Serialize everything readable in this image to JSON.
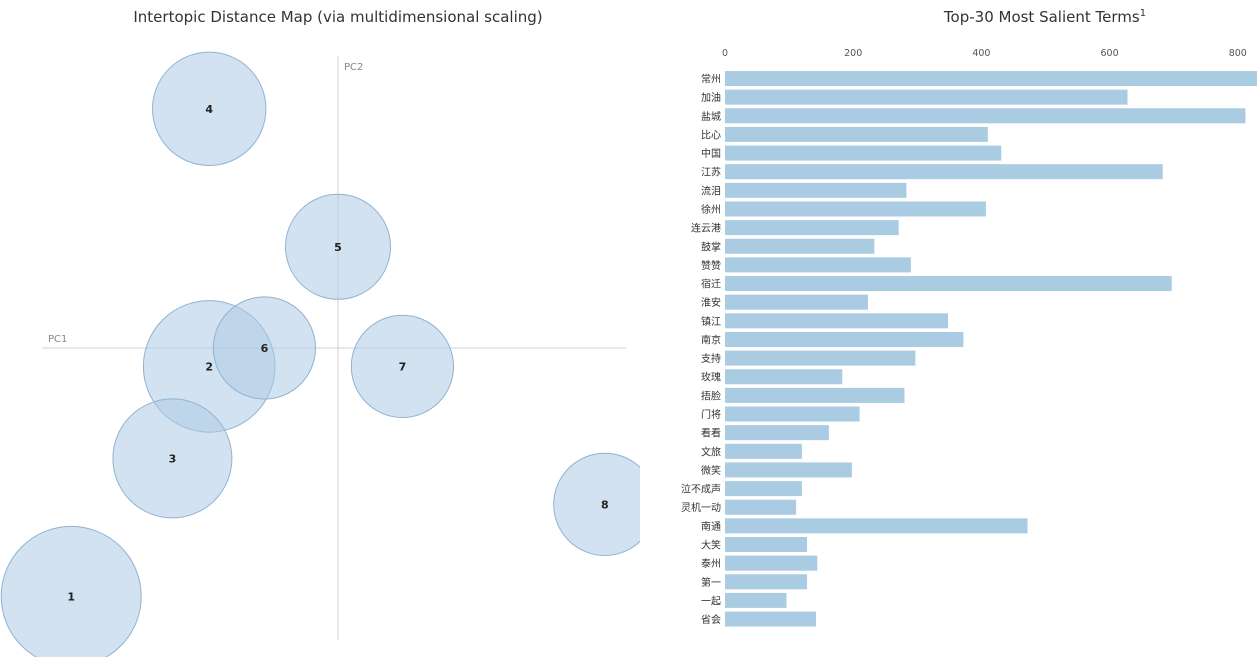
{
  "left_panel": {
    "title": "Intertopic Distance Map (via multidimensional scaling)",
    "axis_x_label": "PC1",
    "axis_y_label": "PC2"
  },
  "right_panel": {
    "title": "Top-30 Most Salient Terms",
    "title_superscript": "1"
  },
  "colors": {
    "bubble_fill": "#aecbe3",
    "bubble_stroke": "#8fb3d3",
    "bar_fill": "#a9cce3",
    "axis_line": "#d0d0d0"
  },
  "chart_data": [
    {
      "type": "scatter",
      "title": "Intertopic Distance Map (via multidimensional scaling)",
      "xlabel": "PC1",
      "ylabel": "PC2",
      "points": [
        {
          "label": "1",
          "pc1": -0.29,
          "pc2": -0.27,
          "relative_size": 1.0
        },
        {
          "label": "2",
          "pc1": -0.14,
          "pc2": -0.02,
          "relative_size": 0.94
        },
        {
          "label": "3",
          "pc1": -0.18,
          "pc2": -0.12,
          "relative_size": 0.85
        },
        {
          "label": "4",
          "pc1": -0.14,
          "pc2": 0.26,
          "relative_size": 0.81
        },
        {
          "label": "5",
          "pc1": 0.0,
          "pc2": 0.11,
          "relative_size": 0.75
        },
        {
          "label": "6",
          "pc1": -0.08,
          "pc2": 0.0,
          "relative_size": 0.73
        },
        {
          "label": "7",
          "pc1": 0.07,
          "pc2": -0.02,
          "relative_size": 0.73
        },
        {
          "label": "8",
          "pc1": 0.29,
          "pc2": -0.17,
          "relative_size": 0.73
        }
      ]
    },
    {
      "type": "bar",
      "orientation": "horizontal",
      "title": "Top-30 Most Salient Terms",
      "xlim": [
        0,
        830
      ],
      "xticks": [
        0,
        200,
        400,
        600,
        800
      ],
      "categories": [
        "常州",
        "加油",
        "盐城",
        "比心",
        "中国",
        "江苏",
        "流泪",
        "徐州",
        "连云港",
        "鼓掌",
        "赞赞",
        "宿迁",
        "淮安",
        "镇江",
        "南京",
        "支持",
        "玫瑰",
        "捂脸",
        "门将",
        "看看",
        "文旅",
        "微笑",
        "泣不成声",
        "灵机一动",
        "南通",
        "大笑",
        "泰州",
        "第一",
        "一起",
        "省会"
      ],
      "values": [
        830,
        628,
        812,
        410,
        431,
        683,
        283,
        407,
        271,
        233,
        290,
        697,
        223,
        348,
        372,
        297,
        183,
        280,
        210,
        162,
        120,
        198,
        120,
        111,
        472,
        128,
        144,
        128,
        96,
        142
      ]
    }
  ]
}
